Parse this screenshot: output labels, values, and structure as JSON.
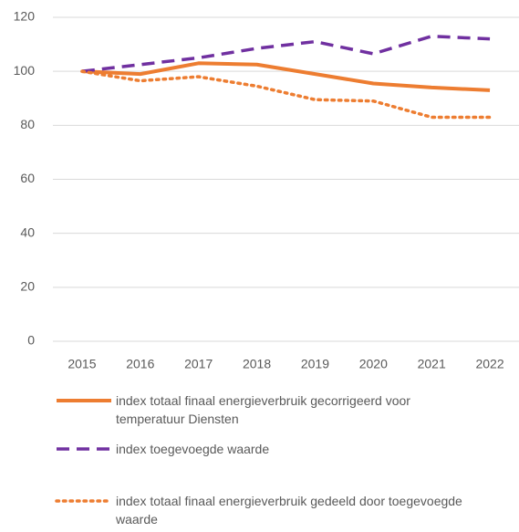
{
  "chart_data": {
    "type": "line",
    "categories": [
      "2015",
      "2016",
      "2017",
      "2018",
      "2019",
      "2020",
      "2021",
      "2022"
    ],
    "series": [
      {
        "name": "index totaal finaal energieverbruik gecorrigeerd voor temperatuur Diensten",
        "color": "#ed7d31",
        "style": "solid",
        "values": [
          100,
          99,
          103,
          102.5,
          99,
          95.5,
          94,
          93
        ]
      },
      {
        "name": "index toegevoegde waarde",
        "color": "#7030a0",
        "style": "dashed",
        "values": [
          100,
          102.5,
          105,
          108.5,
          111,
          106.5,
          113,
          112
        ]
      },
      {
        "name": "index totaal finaal energieverbruik gedeeld door toegevoegde waarde",
        "color": "#ed7d31",
        "style": "dotted",
        "values": [
          100,
          96.5,
          98,
          94.5,
          89.5,
          89,
          83,
          83
        ]
      }
    ],
    "ylim": [
      0,
      120
    ],
    "yticks": [
      0,
      20,
      40,
      60,
      80,
      100,
      120
    ],
    "grid": true,
    "legend": "bottom"
  }
}
